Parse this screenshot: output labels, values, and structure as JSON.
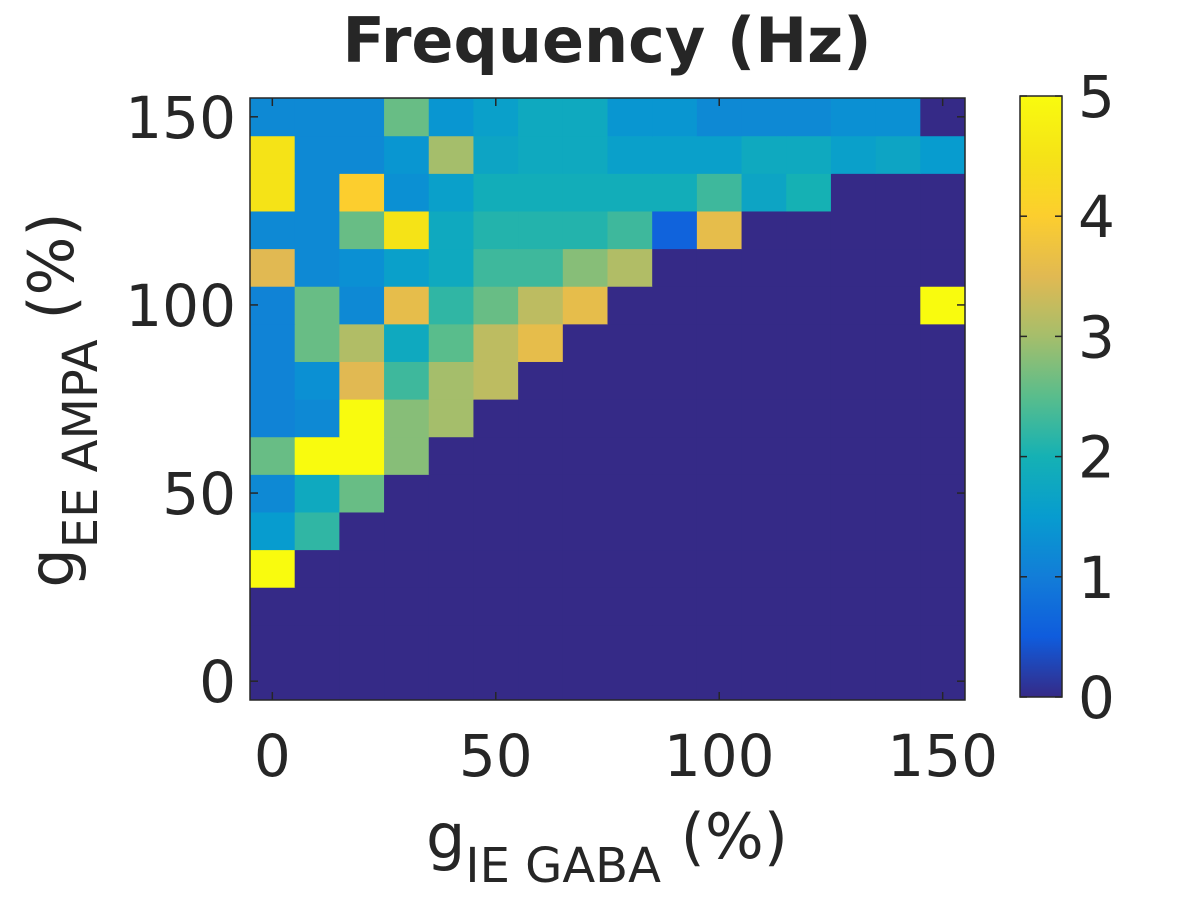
{
  "chart_data": {
    "type": "heatmap",
    "title": "Frequency (Hz)",
    "xlabel": {
      "main": "g",
      "sub": "IE GABA",
      "suffix": " (%)"
    },
    "ylabel": {
      "main": "g",
      "sub": "EE AMPA",
      "suffix": " (%)"
    },
    "x": [
      0,
      10,
      20,
      30,
      40,
      50,
      60,
      70,
      80,
      90,
      100,
      110,
      120,
      130,
      140,
      150
    ],
    "y": [
      0,
      10,
      20,
      30,
      40,
      50,
      60,
      70,
      80,
      90,
      100,
      110,
      120,
      130,
      140,
      150
    ],
    "xlim": [
      -5,
      155
    ],
    "ylim": [
      -5,
      155
    ],
    "xticks": [
      0,
      50,
      100,
      150
    ],
    "yticks": [
      0,
      50,
      100,
      150
    ],
    "colorbar": {
      "min": 0,
      "max": 5,
      "ticks": [
        0,
        1,
        2,
        3,
        4,
        5
      ]
    },
    "values": [
      [
        0,
        0,
        0,
        0,
        0,
        0,
        0,
        0,
        0,
        0,
        0,
        0,
        0,
        0,
        0,
        0
      ],
      [
        0,
        0,
        0,
        0,
        0,
        0,
        0,
        0,
        0,
        0,
        0,
        0,
        0,
        0,
        0,
        0
      ],
      [
        0,
        0,
        0,
        0,
        0,
        0,
        0,
        0,
        0,
        0,
        0,
        0,
        0,
        0,
        0,
        0
      ],
      [
        5.0,
        0,
        0,
        0,
        0,
        0,
        0,
        0,
        0,
        0,
        0,
        0,
        0,
        0,
        0,
        0
      ],
      [
        1.5,
        2.2,
        0,
        0,
        0,
        0,
        0,
        0,
        0,
        0,
        0,
        0,
        0,
        0,
        0,
        0
      ],
      [
        1.2,
        1.8,
        2.6,
        0,
        0,
        0,
        0,
        0,
        0,
        0,
        0,
        0,
        0,
        0,
        0,
        0
      ],
      [
        2.6,
        5.0,
        5.0,
        2.8,
        0,
        0,
        0,
        0,
        0,
        0,
        0,
        0,
        0,
        0,
        0,
        0
      ],
      [
        1.1,
        1.2,
        5.0,
        2.8,
        3.0,
        0,
        0,
        0,
        0,
        0,
        0,
        0,
        0,
        0,
        0,
        0
      ],
      [
        1.1,
        1.3,
        3.5,
        2.3,
        3.0,
        3.2,
        0,
        0,
        0,
        0,
        0,
        0,
        0,
        0,
        0,
        0
      ],
      [
        1.1,
        2.6,
        3.1,
        1.8,
        2.5,
        3.2,
        3.6,
        0,
        0,
        0,
        0,
        0,
        0,
        0,
        0,
        0
      ],
      [
        1.1,
        2.6,
        1.2,
        3.6,
        2.2,
        2.6,
        3.2,
        3.6,
        0,
        0,
        0,
        0,
        0,
        0,
        0,
        5.0
      ],
      [
        3.5,
        1.2,
        1.3,
        1.6,
        1.8,
        2.3,
        2.3,
        2.8,
        3.1,
        0,
        0,
        0,
        0,
        0,
        0,
        0
      ],
      [
        1.2,
        1.2,
        2.6,
        4.5,
        1.8,
        2.1,
        2.1,
        2.1,
        2.3,
        0.6,
        3.6,
        0,
        0,
        0,
        0,
        0
      ],
      [
        4.5,
        1.2,
        4.0,
        1.3,
        1.6,
        1.9,
        1.9,
        1.9,
        1.9,
        1.9,
        2.3,
        1.7,
        2.0,
        0,
        0,
        0
      ],
      [
        4.5,
        1.2,
        1.2,
        1.4,
        3.0,
        1.7,
        1.8,
        1.8,
        1.6,
        1.6,
        1.6,
        1.8,
        1.8,
        1.6,
        1.7,
        1.5
      ],
      [
        1.2,
        1.2,
        1.2,
        2.6,
        1.4,
        1.6,
        1.8,
        1.8,
        1.4,
        1.4,
        1.2,
        1.2,
        1.2,
        1.3,
        1.3,
        0
      ]
    ]
  }
}
